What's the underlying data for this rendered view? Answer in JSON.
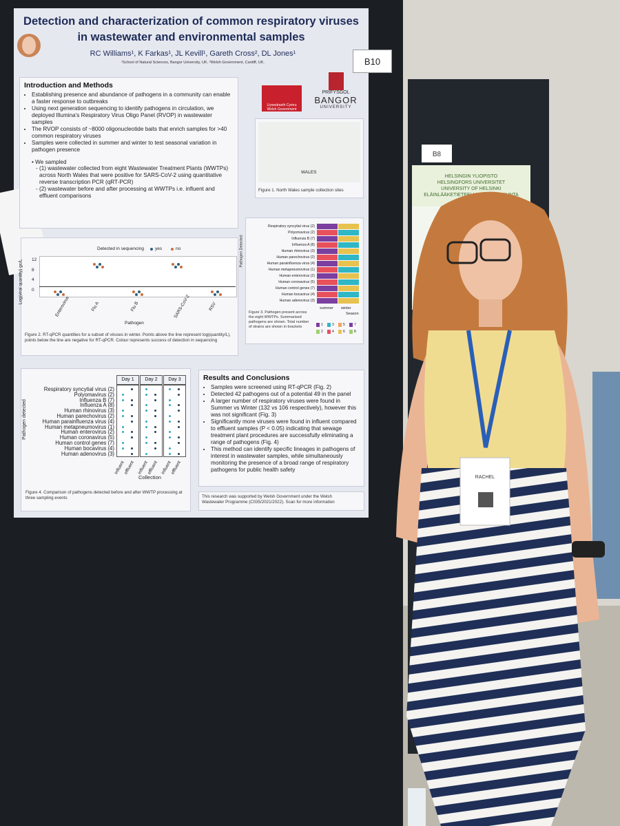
{
  "poster": {
    "title": "Detection and characterization of common respiratory viruses in wastewater and environmental samples",
    "authors": "RC Williams¹, K Farkas¹, JL Kevill¹, Gareth Cross², DL Jones¹",
    "affiliations": "¹School of Natural Sciences, Bangor University, UK. ²Welsh Government, Cardiff, UK.",
    "board_label": "B10",
    "logos": {
      "welsh_government": "Llywodraeth Cymru Welsh Government",
      "university_prefix": "PRIFYSGOL",
      "university": "BANGOR",
      "university_suffix": "UNIVERSITY"
    },
    "intro": {
      "heading": "Introduction and Methods",
      "bullets": [
        "Establishing presence and abundance of pathogens in a community can enable a faster response to outbreaks",
        "Using next generation sequencing to identify pathogens in circulation, we deployed Illumina's Respiratory Virus Oligo Panel (RVOP) in wastewater samples",
        "The RVOP consists of ~8000 oligonucleotide baits that enrich samples for >40 common respiratory viruses",
        "Samples were collected in summer and winter to test seasonal variation in pathogen presence"
      ],
      "sampled_heading": "We sampled",
      "sub_bullets": [
        "(1) wastewater collected from eight Wastewater Treatment Plants (WWTPs) across North Wales that were positive for SARS-CoV-2 using quantitative reverse transcription PCR (qRT-PCR)",
        "(2) wastewater before and after processing at WWTPs i.e. influent and effluent comparisons"
      ]
    },
    "figure1": {
      "map_label": "WALES",
      "caption": "Figure 1. North Wales sample collection sites"
    },
    "figure2": {
      "legend_title": "Detected in sequencing",
      "legend_items": [
        "yes",
        "no"
      ],
      "y_label": "Log(viral quantity) gc/L",
      "y_ticks": [
        "0",
        "4",
        "8",
        "12"
      ],
      "categories": [
        "Enterovirus",
        "Flu A",
        "Flu B",
        "SARS-CoV-2",
        "RSV"
      ],
      "x_label": "Pathogen",
      "caption": "Figure 2. RT-qPCR quantities for a subset of viruses in winter. Points above the line represent log(quantity/L), points below the line are negative for RT-qPCR. Colour represents success of detection in sequencing"
    },
    "figure3": {
      "y_label": "Pathogen Detected",
      "columns": [
        "summer",
        "winter"
      ],
      "x_label": "Season",
      "legend": [
        "1",
        "2",
        "3",
        "4",
        "5",
        "6",
        "7",
        "8"
      ],
      "caption": "Figure 3. Pathogen present across the eight WWTPs. Summarised pathogens are shown. Total number of strains are shown in brackets"
    },
    "figure4": {
      "days": [
        "Day 1",
        "Day 2",
        "Day 3"
      ],
      "y_label": "Pathogen detected",
      "rows": [
        "Respiratory syncytial virus (2)",
        "Polyomavirus (2)",
        "Influenza B (7)",
        "Influenza A (8)",
        "Human rhinovirus (3)",
        "Human parechovirus (2)",
        "Human parainfluenza virus (4)",
        "Human metapneumovirus (1)",
        "Human enterovirus (2)",
        "Human coronavirus (5)",
        "Human control genes (7)",
        "Human bocavirus (4)",
        "Human adenovirus (3)"
      ],
      "columns": [
        "influent",
        "effluent"
      ],
      "x_label": "Collection",
      "caption": "Figure 4. Comparison of pathogens detected before and after WWTP processing at three sampling events"
    },
    "results": {
      "heading": "Results and Conclusions",
      "bullets": [
        "Samples were screened using RT-qPCR (Fig. 2)",
        "Detected 42 pathogens out of a potential 49 in the panel",
        "A larger number of respiratory viruses were found in Summer vs Winter (132 vs 106 respectively), however this was not significant (Fig. 3)",
        "Significantly more viruses were found in influent compared to effluent samples (P < 0.05) indicating that sewage treatment plant procedures are successfully eliminating a range of pathogens (Fig. 4)",
        "This method can identify specific lineages in pathogens of interest in wastewater samples, while simultaneously monitoring the presence of a broad range of respiratory pathogens for public health safety"
      ]
    },
    "acknowledgement": "This research was supported by Welsh Government under the Welsh Wastewater Programme (C035/2021/2022). Scan for more information"
  },
  "background": {
    "other_poster_label": "B8",
    "other_poster_header": [
      "HELSINGIN YLIOPISTO",
      "HELSINGFORS UNIVERSITET",
      "UNIVERSITY OF HELSINKI",
      "ELÄINLÄÄKETIETEELLINEN TIEDEKUNTA"
    ],
    "badge_name": "RACHEL"
  }
}
